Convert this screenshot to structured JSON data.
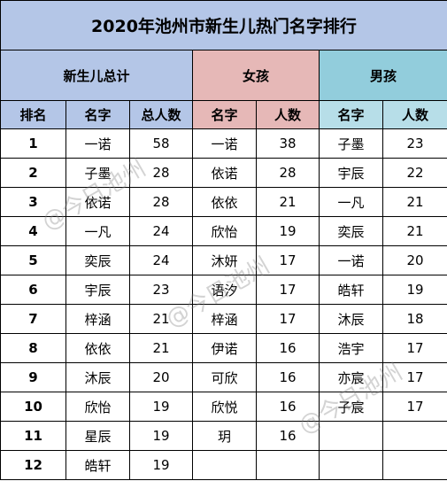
{
  "title": "2020年池州市新生儿热门名字排行",
  "groups": {
    "total": "新生儿总计",
    "girl": "女孩",
    "boy": "男孩"
  },
  "headers": {
    "rank": "排名",
    "name": "名字",
    "total_count": "总人数",
    "girl_name": "名字",
    "girl_count": "人数",
    "boy_name": "名字",
    "boy_count": "人数"
  },
  "rows": [
    {
      "rank": "1",
      "name": "一诺",
      "total": "58",
      "girl_name": "一诺",
      "girl_count": "38",
      "boy_name": "子墨",
      "boy_count": "23"
    },
    {
      "rank": "2",
      "name": "子墨",
      "total": "28",
      "girl_name": "依诺",
      "girl_count": "28",
      "boy_name": "宇辰",
      "boy_count": "22"
    },
    {
      "rank": "3",
      "name": "依诺",
      "total": "28",
      "girl_name": "依依",
      "girl_count": "21",
      "boy_name": "一凡",
      "boy_count": "21"
    },
    {
      "rank": "4",
      "name": "一凡",
      "total": "24",
      "girl_name": "欣怡",
      "girl_count": "19",
      "boy_name": "奕辰",
      "boy_count": "21"
    },
    {
      "rank": "5",
      "name": "奕辰",
      "total": "24",
      "girl_name": "沐妍",
      "girl_count": "17",
      "boy_name": "一诺",
      "boy_count": "20"
    },
    {
      "rank": "6",
      "name": "宇辰",
      "total": "23",
      "girl_name": "语汐",
      "girl_count": "17",
      "boy_name": "皓轩",
      "boy_count": "19"
    },
    {
      "rank": "7",
      "name": "梓涵",
      "total": "21",
      "girl_name": "梓涵",
      "girl_count": "17",
      "boy_name": "沐辰",
      "boy_count": "18"
    },
    {
      "rank": "8",
      "name": "依依",
      "total": "21",
      "girl_name": "伊诺",
      "girl_count": "16",
      "boy_name": "浩宇",
      "boy_count": "17"
    },
    {
      "rank": "9",
      "name": "沐辰",
      "total": "20",
      "girl_name": "可欣",
      "girl_count": "16",
      "boy_name": "亦宸",
      "boy_count": "17"
    },
    {
      "rank": "10",
      "name": "欣怡",
      "total": "19",
      "girl_name": "欣悦",
      "girl_count": "16",
      "boy_name": "子宸",
      "boy_count": "17"
    },
    {
      "rank": "11",
      "name": "星辰",
      "total": "19",
      "girl_name": "玥",
      "girl_count": "16",
      "boy_name": "",
      "boy_count": ""
    },
    {
      "rank": "12",
      "name": "皓轩",
      "total": "19",
      "girl_name": "",
      "girl_count": "",
      "boy_name": "",
      "boy_count": ""
    }
  ],
  "watermark": "@今日池州"
}
